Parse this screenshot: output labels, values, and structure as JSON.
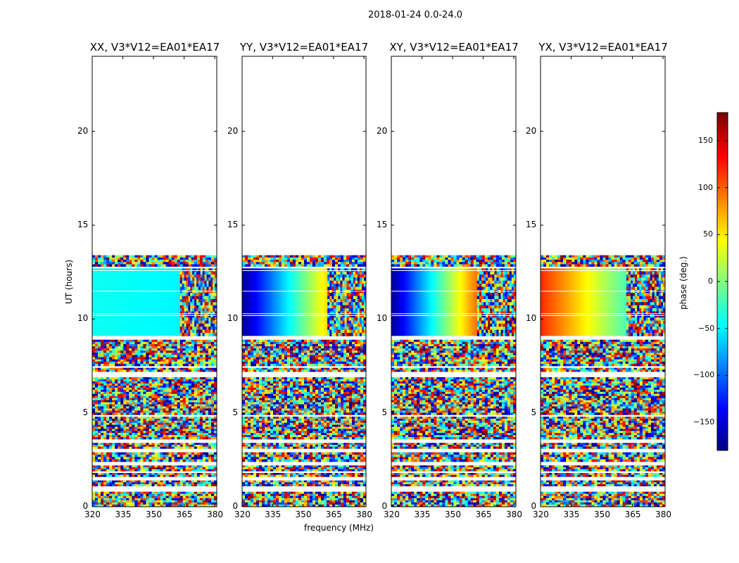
{
  "figure": {
    "suptitle": "2018-01-24 0.0-24.0"
  },
  "chart_data": [
    {
      "type": "heatmap",
      "title": "XX, V3*V12=EA01*EA17",
      "xlabel": "",
      "ylabel": "UT (hours)",
      "xlim": [
        320,
        381
      ],
      "ylim": [
        0,
        24
      ],
      "xticks": [
        "320",
        "335",
        "350",
        "365",
        "380"
      ],
      "yticks": [
        "0",
        "5",
        "10",
        "15",
        "20"
      ],
      "calibrated_block": {
        "ut_start": 9.1,
        "ut_end": 12.7,
        "phase_at_320MHz": -40,
        "phase_at_360MHz": -48,
        "noisy_from_MHz": 363
      },
      "data_coverage_ut": [
        0,
        13.4
      ],
      "noise_bands_ut": [
        [
          0.0,
          0.8
        ],
        [
          1.1,
          1.4
        ],
        [
          1.6,
          1.8
        ],
        [
          1.9,
          2.2
        ],
        [
          2.4,
          2.9
        ],
        [
          3.1,
          3.4
        ],
        [
          3.6,
          4.8
        ],
        [
          4.9,
          6.9
        ],
        [
          7.2,
          7.4
        ],
        [
          7.5,
          8.9
        ],
        [
          12.8,
          13.4
        ]
      ]
    },
    {
      "type": "heatmap",
      "title": "YY, V3*V12=EA01*EA17",
      "xlabel": "frequency (MHz)",
      "ylabel": "",
      "xlim": [
        320,
        381
      ],
      "ylim": [
        0,
        24
      ],
      "xticks": [
        "320",
        "335",
        "350",
        "365",
        "380"
      ],
      "yticks": [
        "0",
        "5",
        "10",
        "15",
        "20"
      ],
      "calibrated_block": {
        "ut_start": 9.1,
        "ut_end": 12.7,
        "phase_at_320MHz": -170,
        "phase_at_360MHz": 60,
        "noisy_from_MHz": 362
      },
      "data_coverage_ut": [
        0,
        13.4
      ],
      "noise_bands_ut": [
        [
          0.0,
          0.8
        ],
        [
          1.1,
          1.4
        ],
        [
          1.6,
          1.8
        ],
        [
          1.9,
          2.2
        ],
        [
          2.4,
          2.9
        ],
        [
          3.1,
          3.4
        ],
        [
          3.6,
          4.8
        ],
        [
          4.9,
          6.9
        ],
        [
          7.2,
          7.4
        ],
        [
          7.5,
          8.9
        ],
        [
          12.8,
          13.4
        ]
      ]
    },
    {
      "type": "heatmap",
      "title": "XY, V3*V12=EA01*EA17",
      "xlabel": "",
      "ylabel": "",
      "xlim": [
        320,
        381
      ],
      "ylim": [
        0,
        24
      ],
      "xticks": [
        "320",
        "335",
        "350",
        "365",
        "380"
      ],
      "yticks": [
        "0",
        "5",
        "10",
        "15",
        "20"
      ],
      "calibrated_block": {
        "ut_start": 9.1,
        "ut_end": 12.7,
        "phase_at_320MHz": -170,
        "phase_at_360MHz": 100,
        "noisy_from_MHz": 362
      },
      "data_coverage_ut": [
        0,
        13.4
      ],
      "noise_bands_ut": [
        [
          0.0,
          0.8
        ],
        [
          1.1,
          1.4
        ],
        [
          1.6,
          1.8
        ],
        [
          1.9,
          2.2
        ],
        [
          2.4,
          2.9
        ],
        [
          3.1,
          3.4
        ],
        [
          3.6,
          4.8
        ],
        [
          4.9,
          6.9
        ],
        [
          7.2,
          7.4
        ],
        [
          7.5,
          8.9
        ],
        [
          12.8,
          13.4
        ]
      ]
    },
    {
      "type": "heatmap",
      "title": "YX, V3*V12=EA01*EA17",
      "xlabel": "",
      "ylabel": "",
      "xlim": [
        320,
        381
      ],
      "ylim": [
        0,
        24
      ],
      "xticks": [
        "320",
        "335",
        "350",
        "365",
        "380"
      ],
      "yticks": [
        "0",
        "5",
        "10",
        "15",
        "20"
      ],
      "calibrated_block": {
        "ut_start": 9.1,
        "ut_end": 12.7,
        "phase_at_320MHz": 120,
        "phase_at_360MHz": -20,
        "noisy_from_MHz": 362
      },
      "data_coverage_ut": [
        0,
        13.4
      ],
      "noise_bands_ut": [
        [
          0.0,
          0.8
        ],
        [
          1.1,
          1.4
        ],
        [
          1.6,
          1.8
        ],
        [
          1.9,
          2.2
        ],
        [
          2.4,
          2.9
        ],
        [
          3.1,
          3.4
        ],
        [
          3.6,
          4.8
        ],
        [
          4.9,
          6.9
        ],
        [
          7.2,
          7.4
        ],
        [
          7.5,
          8.9
        ],
        [
          12.8,
          13.4
        ]
      ]
    }
  ],
  "colorbar": {
    "label": "phase (deg.)",
    "range": [
      -180,
      180
    ],
    "ticks": [
      "150",
      "100",
      "50",
      "0",
      "−50",
      "−100",
      "−150"
    ],
    "tick_values": [
      150,
      100,
      50,
      0,
      -50,
      -100,
      -150
    ],
    "colormap": "jet"
  }
}
